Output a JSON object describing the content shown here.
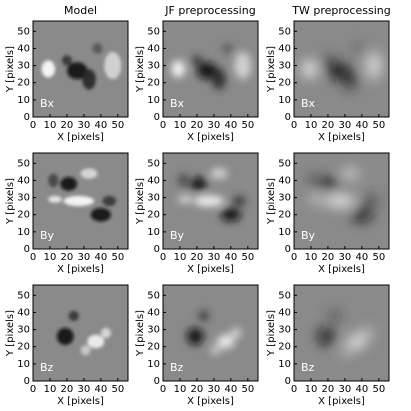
{
  "chart_data": [
    {
      "type": "image",
      "title": "Model",
      "label": "Bx",
      "xlabel": "X [pixels]",
      "ylabel": "Y [pixels]",
      "xlim": [
        0,
        56
      ],
      "ylim": [
        0,
        56
      ],
      "xticks": [
        0,
        10,
        20,
        30,
        40,
        50
      ],
      "yticks": [
        0,
        10,
        20,
        30,
        40,
        50
      ]
    },
    {
      "type": "image",
      "title": "JF preprocessing",
      "label": "Bx",
      "xlabel": "X [pixels]",
      "ylabel": "Y [pixels]",
      "xlim": [
        0,
        56
      ],
      "ylim": [
        0,
        56
      ],
      "xticks": [
        0,
        10,
        20,
        30,
        40,
        50
      ],
      "yticks": [
        0,
        10,
        20,
        30,
        40,
        50
      ]
    },
    {
      "type": "image",
      "title": "TW preprocessing",
      "label": "Bx",
      "xlabel": "X [pixels]",
      "ylabel": "Y [pixels]",
      "xlim": [
        0,
        56
      ],
      "ylim": [
        0,
        56
      ],
      "xticks": [
        0,
        10,
        20,
        30,
        40,
        50
      ],
      "yticks": [
        0,
        10,
        20,
        30,
        40,
        50
      ]
    },
    {
      "type": "image",
      "label": "By",
      "xlabel": "X [pixels]",
      "ylabel": "Y [pixels]",
      "xlim": [
        0,
        56
      ],
      "ylim": [
        0,
        56
      ],
      "xticks": [
        0,
        10,
        20,
        30,
        40,
        50
      ],
      "yticks": [
        0,
        10,
        20,
        30,
        40,
        50
      ]
    },
    {
      "type": "image",
      "label": "By",
      "xlabel": "X [pixels]",
      "ylabel": "Y [pixels]",
      "xlim": [
        0,
        56
      ],
      "ylim": [
        0,
        56
      ],
      "xticks": [
        0,
        10,
        20,
        30,
        40,
        50
      ],
      "yticks": [
        0,
        10,
        20,
        30,
        40,
        50
      ]
    },
    {
      "type": "image",
      "label": "By",
      "xlabel": "X [pixels]",
      "ylabel": "Y [pixels]",
      "xlim": [
        0,
        56
      ],
      "ylim": [
        0,
        56
      ],
      "xticks": [
        0,
        10,
        20,
        30,
        40,
        50
      ],
      "yticks": [
        0,
        10,
        20,
        30,
        40,
        50
      ]
    },
    {
      "type": "image",
      "label": "Bz",
      "xlabel": "X [pixels]",
      "ylabel": "Y [pixels]",
      "xlim": [
        0,
        56
      ],
      "ylim": [
        0,
        56
      ],
      "xticks": [
        0,
        10,
        20,
        30,
        40,
        50
      ],
      "yticks": [
        0,
        10,
        20,
        30,
        40,
        50
      ]
    },
    {
      "type": "image",
      "label": "Bz",
      "xlabel": "X [pixels]",
      "ylabel": "Y [pixels]",
      "xlim": [
        0,
        56
      ],
      "ylim": [
        0,
        56
      ],
      "xticks": [
        0,
        10,
        20,
        30,
        40,
        50
      ],
      "yticks": [
        0,
        10,
        20,
        30,
        40,
        50
      ]
    },
    {
      "type": "image",
      "label": "Bz",
      "xlabel": "X [pixels]",
      "ylabel": "Y [pixels]",
      "xlim": [
        0,
        56
      ],
      "ylim": [
        0,
        56
      ],
      "xticks": [
        0,
        10,
        20,
        30,
        40,
        50
      ],
      "yticks": [
        0,
        10,
        20,
        30,
        40,
        50
      ]
    }
  ]
}
